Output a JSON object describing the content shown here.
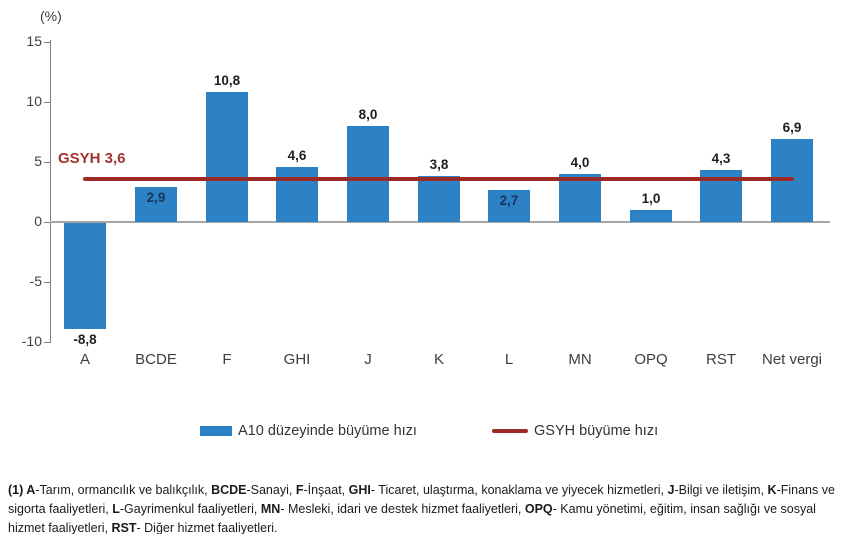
{
  "chart_data": {
    "type": "bar",
    "unit_label": "(%)",
    "categories": [
      "A",
      "BCDE",
      "F",
      "GHI",
      "J",
      "K",
      "L",
      "MN",
      "OPQ",
      "RST",
      "Net vergi"
    ],
    "series": [
      {
        "name": "A10 düzeyinde büyüme hızı",
        "type": "bar",
        "color": "#2d82c5",
        "values": [
          -8.8,
          2.9,
          10.8,
          4.6,
          8.0,
          3.8,
          2.7,
          4.0,
          1.0,
          4.3,
          6.9
        ],
        "labels": [
          "-8,8",
          "2,9",
          "10,8",
          "4,6",
          "8,0",
          "3,8",
          "2,7",
          "4,0",
          "1,0",
          "4,3",
          "6,9"
        ],
        "label_inside": [
          false,
          true,
          false,
          false,
          false,
          false,
          true,
          false,
          false,
          false,
          false
        ]
      },
      {
        "name": "GSYH büyüme hızı",
        "type": "line",
        "color": "#9c2b26",
        "value": 3.6,
        "annotation": "GSYH 3,6",
        "annotation_color": "#a23430"
      }
    ],
    "y_axis": {
      "min": -10,
      "max": 15,
      "step": 5
    },
    "grid": false,
    "legend_position": "bottom"
  },
  "footnote": {
    "segments": [
      {
        "text": "(1) ",
        "bold": true
      },
      {
        "text": "A",
        "bold": true
      },
      {
        "text": "-Tarım,  ormancılık ve balıkçılık,  ",
        "bold": false
      },
      {
        "text": "BCDE",
        "bold": true
      },
      {
        "text": "-Sanayi,  ",
        "bold": false
      },
      {
        "text": "F",
        "bold": true
      },
      {
        "text": "-İnşaat,  ",
        "bold": false
      },
      {
        "text": "GHI",
        "bold": true
      },
      {
        "text": "- Ticaret,  ulaştırma,  konaklama ve yiyecek hizmetleri,  ",
        "bold": false
      },
      {
        "text": "J",
        "bold": true
      },
      {
        "text": "-Bilgi ve iletişim,  ",
        "bold": false
      },
      {
        "text": "K",
        "bold": true
      },
      {
        "text": "-Finans ve sigorta faaliyetleri,  ",
        "bold": false
      },
      {
        "text": "L",
        "bold": true
      },
      {
        "text": "-Gayrimenkul faaliyetleri,  ",
        "bold": false
      },
      {
        "text": "MN",
        "bold": true
      },
      {
        "text": "- Mesleki,  idari ve destek hizmet faaliyetleri,  ",
        "bold": false
      },
      {
        "text": "OPQ",
        "bold": true
      },
      {
        "text": "- Kamu yönetimi,  eğitim,  insan sağlığı ve sosyal hizmet faaliyetleri,  ",
        "bold": false
      },
      {
        "text": "RST",
        "bold": true
      },
      {
        "text": "- Diğer hizmet faaliyetleri.",
        "bold": false
      }
    ]
  }
}
